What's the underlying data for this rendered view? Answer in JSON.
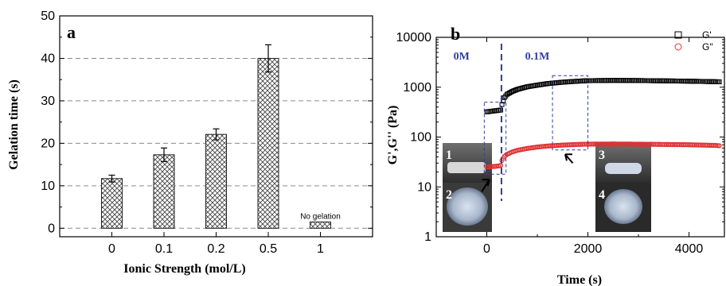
{
  "chart_data": [
    {
      "type": "bar",
      "panel_label": "a",
      "categories": [
        "0",
        "0.1",
        "0.2",
        "0.5",
        "1"
      ],
      "values": [
        11.7,
        17.3,
        22.1,
        40.0,
        0
      ],
      "errors": [
        0.8,
        1.6,
        1.3,
        3.2,
        0
      ],
      "annotation": "No gelation",
      "xlabel": "Ionic Strength (mol/L)",
      "ylabel": "Gelation time (s)",
      "ylim": [
        -2,
        50
      ],
      "yticks": [
        "0",
        "10",
        "20",
        "30",
        "40",
        "50"
      ],
      "grid": "horizontal dashed",
      "pattern": "crosshatch"
    },
    {
      "type": "scatter",
      "panel_label": "b",
      "xlabel": "Time (s)",
      "ylabel": "G',G'' (Pa)",
      "yscale": "log",
      "ylim": [
        1,
        10000
      ],
      "xlim": [
        -1000,
        4700
      ],
      "xticks": [
        "0",
        "2000",
        "4000"
      ],
      "yticks": [
        "1",
        "10",
        "100",
        "1000",
        "10000"
      ],
      "legend_position": "top-right",
      "vline_x": 290,
      "region_labels": [
        "0M",
        "0.1M"
      ],
      "photo_labels": [
        "1",
        "2",
        "3",
        "4"
      ],
      "series": [
        {
          "name": "G'",
          "marker": "square",
          "color": "#000000",
          "x": [
            0,
            100,
            200,
            290,
            300,
            350,
            400,
            500,
            600,
            700,
            800,
            1000,
            1200,
            1500,
            1800,
            2000,
            2500,
            3000,
            3500,
            4000,
            4500,
            4600
          ],
          "y": [
            320,
            330,
            340,
            350,
            450,
            620,
            720,
            820,
            900,
            960,
            1020,
            1100,
            1180,
            1260,
            1320,
            1350,
            1370,
            1360,
            1340,
            1320,
            1290,
            1280
          ]
        },
        {
          "name": "G\"",
          "marker": "circle",
          "color": "#e03030",
          "x": [
            0,
            100,
            200,
            290,
            300,
            350,
            400,
            500,
            600,
            800,
            1000,
            1200,
            1500,
            1800,
            2000,
            2500,
            3000,
            3500,
            4000,
            4500,
            4600
          ],
          "y": [
            25,
            25.5,
            26,
            27,
            34,
            41,
            45,
            50,
            54,
            59,
            63,
            66,
            69,
            71,
            72,
            72.5,
            72,
            71,
            70,
            68,
            67
          ]
        }
      ]
    }
  ]
}
